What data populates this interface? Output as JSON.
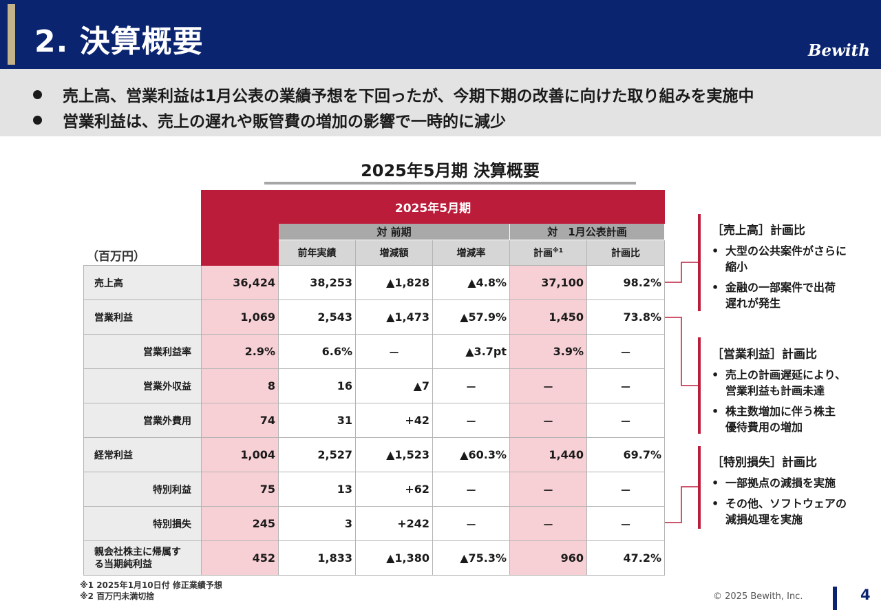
{
  "header": {
    "title": "2. 決算概要",
    "logo": "Bewith"
  },
  "summary": [
    "売上高、営業利益は1月公表の業績予想を下回ったが、今期下期の改善に向けた取り組みを実施中",
    "営業利益は、売上の遅れや販管費の増加の影響で一時的に減少"
  ],
  "table": {
    "title": "2025年5月期 決算概要",
    "unit": "（百万円）",
    "period_header": "2025年5月期",
    "group_prev": "対 前期",
    "group_plan": "対　1月公表計画",
    "col_prev": "前年実績",
    "col_diff": "増減額",
    "col_rate": "増減率",
    "col_plan": "計画",
    "col_plan_mark": "※1",
    "col_ratio": "計画比",
    "rows": [
      {
        "label": "売上高",
        "actual": "36,424",
        "prev": "38,253",
        "diff": "▲1,828",
        "rate": "▲4.8%",
        "plan": "37,100",
        "ratio": "98.2%"
      },
      {
        "label": "営業利益",
        "actual": "1,069",
        "prev": "2,543",
        "diff": "▲1,473",
        "rate": "▲57.9%",
        "plan": "1,450",
        "ratio": "73.8%"
      },
      {
        "label": "営業利益率",
        "actual": "2.9%",
        "prev": "6.6%",
        "diff": "－",
        "rate": "▲3.7pt",
        "plan": "3.9%",
        "ratio": "－"
      },
      {
        "label": "営業外収益",
        "actual": "8",
        "prev": "16",
        "diff": "▲7",
        "rate": "－",
        "plan": "－",
        "ratio": "－"
      },
      {
        "label": "営業外費用",
        "actual": "74",
        "prev": "31",
        "diff": "+42",
        "rate": "－",
        "plan": "－",
        "ratio": "－"
      },
      {
        "label": "経常利益",
        "actual": "1,004",
        "prev": "2,527",
        "diff": "▲1,523",
        "rate": "▲60.3%",
        "plan": "1,440",
        "ratio": "69.7%"
      },
      {
        "label": "特別利益",
        "actual": "75",
        "prev": "13",
        "diff": "+62",
        "rate": "－",
        "plan": "－",
        "ratio": "－"
      },
      {
        "label": "特別損失",
        "actual": "245",
        "prev": "3",
        "diff": "+242",
        "rate": "－",
        "plan": "－",
        "ratio": "－"
      },
      {
        "label_line1": "親会社株主に帰属す",
        "label_line2": "る当期純利益",
        "actual": "452",
        "prev": "1,833",
        "diff": "▲1,380",
        "rate": "▲75.3%",
        "plan": "960",
        "ratio": "47.2%"
      }
    ]
  },
  "notes": [
    {
      "heading": "［売上高］計画比",
      "bullets": [
        [
          "大型の公共案件がさらに",
          "縮小"
        ],
        [
          "金融の一部案件で出荷",
          "遅れが発生"
        ]
      ]
    },
    {
      "heading": "［営業利益］計画比",
      "bullets": [
        [
          "売上の計画遅延により、",
          "営業利益も計画未達"
        ],
        [
          "株主数増加に伴う株主",
          "優待費用の増加"
        ]
      ]
    },
    {
      "heading": "［特別損失］計画比",
      "bullets": [
        [
          "一部拠点の減損を実施"
        ],
        [
          "その他、ソフトウェアの",
          "減損処理を実施"
        ]
      ]
    }
  ],
  "footnotes": [
    "※1  2025年1月10日付 修正業績予想",
    "※2 百万円未満切捨"
  ],
  "footer": {
    "copyright": "© 2025 Bewith, Inc.",
    "page": "4"
  },
  "colors": {
    "navy": "#0a2470",
    "red": "#bb1c3a",
    "pink": "#f7d0d5",
    "gold": "#c4b28a"
  }
}
